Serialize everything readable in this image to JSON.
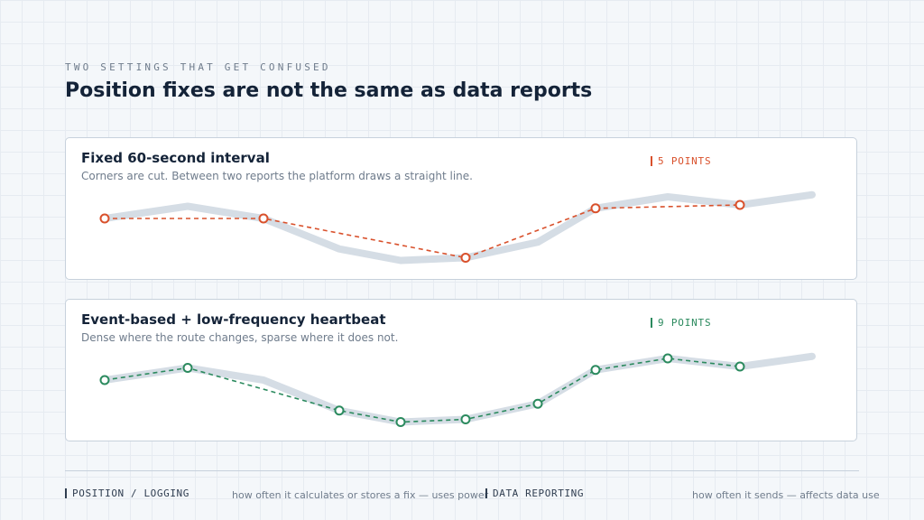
{
  "header": {
    "eyebrow": "TWO SETTINGS THAT GET CONFUSED",
    "title": "Position fixes are not the same as data reports"
  },
  "panels": [
    {
      "title": "Fixed 60-second interval",
      "subtitle": "Corners are cut. Between two reports the platform draws a straight line.",
      "count_label": "5 POINTS",
      "color": "#d9512c"
    },
    {
      "title": "Event-based + low-frequency heartbeat",
      "subtitle": "Dense where the route changes, sparse where it does not.",
      "count_label": "9 POINTS",
      "color": "#2b8a5e"
    }
  ],
  "route": {
    "color": "#d5dde5",
    "x": [
      0,
      1.15,
      2.2,
      3.25,
      4.1,
      5.0,
      6.0,
      6.8,
      7.8,
      8.8,
      9.8
    ],
    "y": [
      0.0,
      -0.18,
      0.0,
      0.45,
      0.62,
      0.58,
      0.35,
      -0.15,
      -0.32,
      -0.2,
      -0.35
    ]
  },
  "samples": {
    "fixed_interval": [
      0,
      2,
      5,
      7,
      9
    ],
    "event_based": [
      0,
      1,
      3,
      4,
      5,
      6,
      7,
      8,
      9
    ]
  },
  "legend": [
    {
      "label": "POSITION / LOGGING",
      "desc": "how often it calculates or stores a fix — uses power"
    },
    {
      "label": "DATA REPORTING",
      "desc": "how often it sends — affects data use"
    }
  ]
}
